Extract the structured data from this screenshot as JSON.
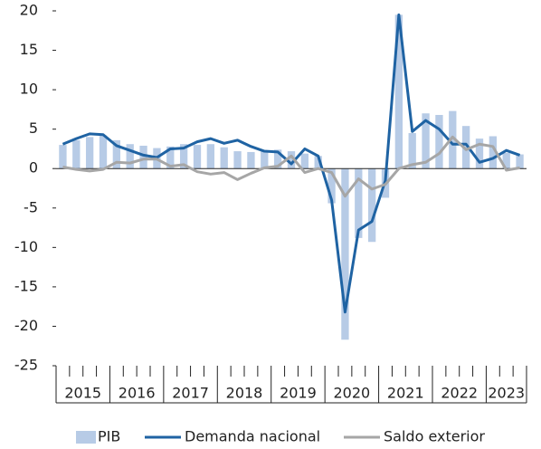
{
  "chart_data": {
    "type": "bar-line",
    "categories": [
      null,
      null,
      null,
      null,
      null,
      null,
      null,
      null,
      null,
      null,
      null,
      null,
      null,
      null,
      null,
      null,
      null,
      null,
      null,
      null,
      null,
      null,
      null,
      null,
      null,
      null,
      null,
      null,
      null,
      null,
      null,
      null,
      null,
      null,
      null
    ],
    "year_labels": [
      "2015",
      "2016",
      "2017",
      "2018",
      "2019",
      "2020",
      "2021",
      "2022",
      "2023"
    ],
    "series": [
      {
        "name": "PIB",
        "kind": "bar",
        "color": "#b7cbe6",
        "values": [
          3.0,
          3.6,
          4.0,
          4.2,
          3.6,
          3.1,
          2.9,
          2.6,
          2.8,
          3.1,
          3.0,
          3.1,
          2.7,
          2.2,
          2.1,
          2.3,
          2.4,
          2.2,
          1.9,
          1.6,
          -4.4,
          -21.7,
          -8.8,
          -9.3,
          -3.7,
          19.5,
          4.5,
          7.0,
          6.8,
          7.3,
          5.4,
          3.8,
          4.1,
          2.0,
          1.8
        ]
      },
      {
        "name": "Demanda nacional",
        "kind": "line",
        "color": "#1f63a3",
        "values": [
          3.1,
          3.8,
          4.4,
          4.3,
          2.9,
          2.3,
          1.7,
          1.4,
          2.5,
          2.6,
          3.4,
          3.8,
          3.2,
          3.6,
          2.8,
          2.2,
          2.1,
          0.6,
          2.5,
          1.6,
          -4.0,
          -18.2,
          -7.8,
          -6.7,
          -1.5,
          19.5,
          4.7,
          6.1,
          5.0,
          3.1,
          3.1,
          0.8,
          1.3,
          2.3,
          1.7
        ]
      },
      {
        "name": "Saldo exterior",
        "kind": "line",
        "color": "#a6a6a6",
        "values": [
          0.2,
          -0.1,
          -0.3,
          -0.1,
          0.8,
          0.7,
          1.2,
          1.2,
          0.3,
          0.5,
          -0.4,
          -0.7,
          -0.5,
          -1.4,
          -0.6,
          0.1,
          0.3,
          1.6,
          -0.5,
          0.0,
          -0.5,
          -3.5,
          -1.3,
          -2.6,
          -2.0,
          0.0,
          0.5,
          0.8,
          1.9,
          4.0,
          2.4,
          3.1,
          2.8,
          -0.2,
          0.1
        ]
      }
    ],
    "ylim": [
      -25,
      20
    ],
    "yticks": [
      -25,
      -20,
      -15,
      -10,
      -5,
      0,
      5,
      10,
      15,
      20
    ]
  }
}
